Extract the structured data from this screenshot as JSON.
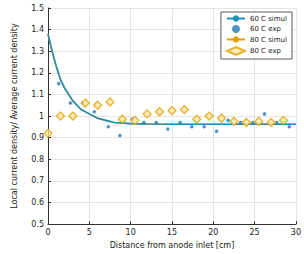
{
  "chart_data": {
    "type": "scatter",
    "x_label": "Distance from anode inlet [cm]",
    "y_label": "Local current density/ Average current density",
    "xlim": [
      0,
      30
    ],
    "xticks": [
      0,
      5,
      10,
      15,
      20,
      25,
      30
    ],
    "ylim": [
      0.5,
      1.5
    ],
    "yticks": [
      0.5,
      0.6,
      0.7,
      0.8,
      0.9,
      1,
      1.1,
      1.2,
      1.3,
      1.4,
      1.5
    ],
    "grid": true,
    "legend": "top-right",
    "series": [
      {
        "name": "60 C simul",
        "type": "line",
        "marker": "none",
        "line_style": "solid",
        "color": "#1f8fc0",
        "x": [
          0,
          0.5,
          1,
          1.5,
          2,
          3,
          4,
          5,
          6,
          7,
          8,
          10,
          12,
          15,
          20,
          25,
          30
        ],
        "values": [
          1.38,
          1.3,
          1.23,
          1.17,
          1.13,
          1.07,
          1.03,
          1.01,
          0.99,
          0.98,
          0.97,
          0.965,
          0.963,
          0.962,
          0.962,
          0.962,
          0.962
        ]
      },
      {
        "name": "60 C exp",
        "type": "scatter",
        "marker": "circle",
        "color": "#1f77b4",
        "x": [
          1.3,
          2.7,
          4.2,
          5.6,
          7.3,
          8.7,
          10.2,
          11.6,
          13.1,
          14.5,
          16,
          17.4,
          18.9,
          20.4,
          21.8,
          23.3,
          24.8,
          26.2,
          27.7,
          29.2
        ],
        "values": [
          1.15,
          1.06,
          1.06,
          1.02,
          0.95,
          0.91,
          0.985,
          0.97,
          0.97,
          0.94,
          0.97,
          0.95,
          0.95,
          0.93,
          0.98,
          0.97,
          0.97,
          1.01,
          0.97,
          0.95
        ]
      },
      {
        "name": "80 C simul",
        "type": "line",
        "marker": "none",
        "line_style": "solid",
        "color": "#e69f00",
        "x": [
          0,
          0.5,
          1,
          1.5,
          2,
          3,
          4,
          5,
          6,
          7,
          8,
          10,
          12,
          15,
          20,
          25,
          30
        ],
        "values": [
          1.38,
          1.3,
          1.23,
          1.17,
          1.13,
          1.07,
          1.03,
          1.01,
          0.99,
          0.98,
          0.97,
          0.965,
          0.963,
          0.962,
          0.962,
          0.962,
          0.962
        ]
      },
      {
        "name": "80 C exp",
        "type": "scatter",
        "marker": "diamond",
        "color": "#e69f00",
        "x": [
          0,
          1.5,
          3,
          4.5,
          6,
          7.5,
          9,
          10.5,
          12,
          13.5,
          15,
          16.5,
          18,
          19.5,
          21,
          22.5,
          24,
          25.5,
          27,
          28.5
        ],
        "values": [
          0.92,
          1.0,
          1.0,
          1.06,
          1.05,
          1.065,
          0.985,
          0.98,
          1.01,
          1.02,
          1.025,
          1.03,
          0.985,
          1.0,
          0.99,
          0.975,
          0.97,
          0.975,
          0.97,
          0.98
        ]
      }
    ]
  }
}
